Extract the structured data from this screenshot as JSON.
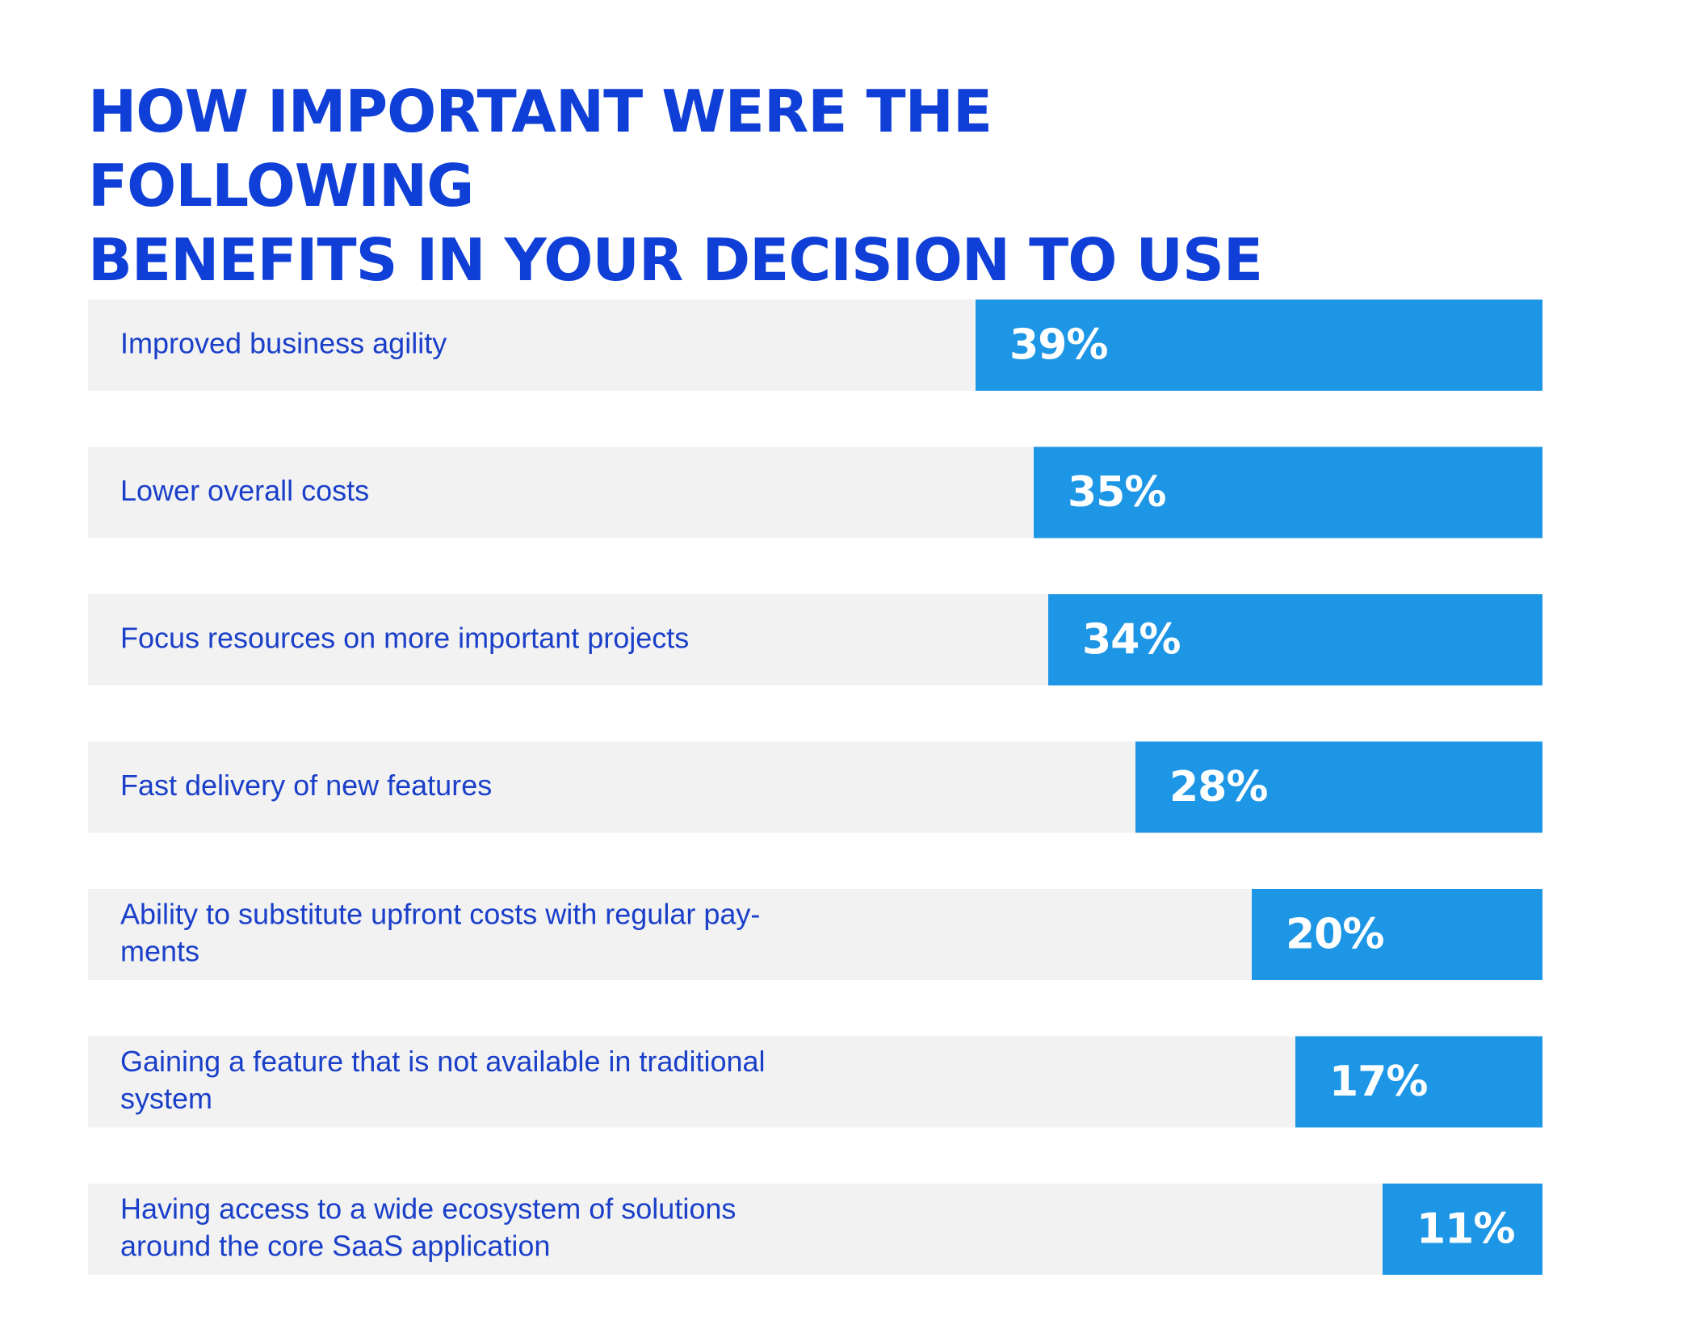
{
  "title_lines": [
    "HOW IMPORTANT WERE THE FOLLOWING",
    "BENEFITS IN YOUR DECISION TO USE"
  ],
  "colors": {
    "title": "#0f3fd6",
    "label": "#1a3fc9",
    "track": "#f2f2f2",
    "bar": "#1e96e6",
    "value_text": "#ffffff"
  },
  "chart_data": {
    "type": "bar",
    "orientation": "horizontal",
    "direction": "right-aligned",
    "title": "HOW IMPORTANT WERE THE FOLLOWING BENEFITS IN YOUR DECISION TO USE",
    "unit": "%",
    "categories": [
      [
        "Improved business agility"
      ],
      [
        "Lower overall costs"
      ],
      [
        "Focus resources on more important projects"
      ],
      [
        "Fast delivery of new features"
      ],
      [
        "Ability to substitute upfront costs with regular pay-",
        "ments"
      ],
      [
        "Gaining a feature that is not available in traditional",
        "system"
      ],
      [
        "Having access to a wide ecosystem of solutions",
        "around the core SaaS application"
      ]
    ],
    "values": [
      39,
      35,
      34,
      28,
      20,
      17,
      11
    ],
    "value_labels": [
      "39%",
      "35%",
      "34%",
      "28%",
      "20%",
      "17%",
      "11%"
    ],
    "legend": "none",
    "grid": false
  }
}
